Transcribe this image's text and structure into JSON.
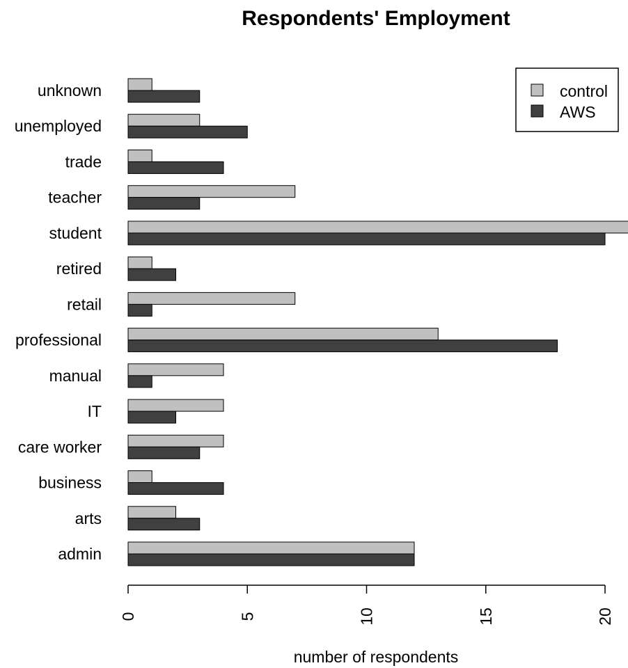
{
  "chart_data": {
    "type": "bar",
    "orientation": "horizontal",
    "title": "Respondents' Employment",
    "xlabel": "number of respondents",
    "ylabel": "",
    "xlim": [
      0,
      20
    ],
    "x_ticks": [
      "0",
      "5",
      "10",
      "15",
      "20"
    ],
    "categories": [
      "admin",
      "arts",
      "business",
      "care worker",
      "IT",
      "manual",
      "professional",
      "retail",
      "retired",
      "student",
      "teacher",
      "trade",
      "unemployed",
      "unknown"
    ],
    "series": [
      {
        "name": "control",
        "color": "#c0c0c0",
        "values": [
          12,
          2,
          1,
          4,
          4,
          4,
          13,
          7,
          1,
          21,
          7,
          1,
          3,
          1
        ]
      },
      {
        "name": "AWS",
        "color": "#404040",
        "values": [
          12,
          3,
          4,
          3,
          2,
          1,
          18,
          1,
          2,
          20,
          3,
          4,
          5,
          3
        ]
      }
    ],
    "legend": {
      "position": "top-right",
      "entries": [
        "control",
        "AWS"
      ]
    },
    "grid": false
  }
}
